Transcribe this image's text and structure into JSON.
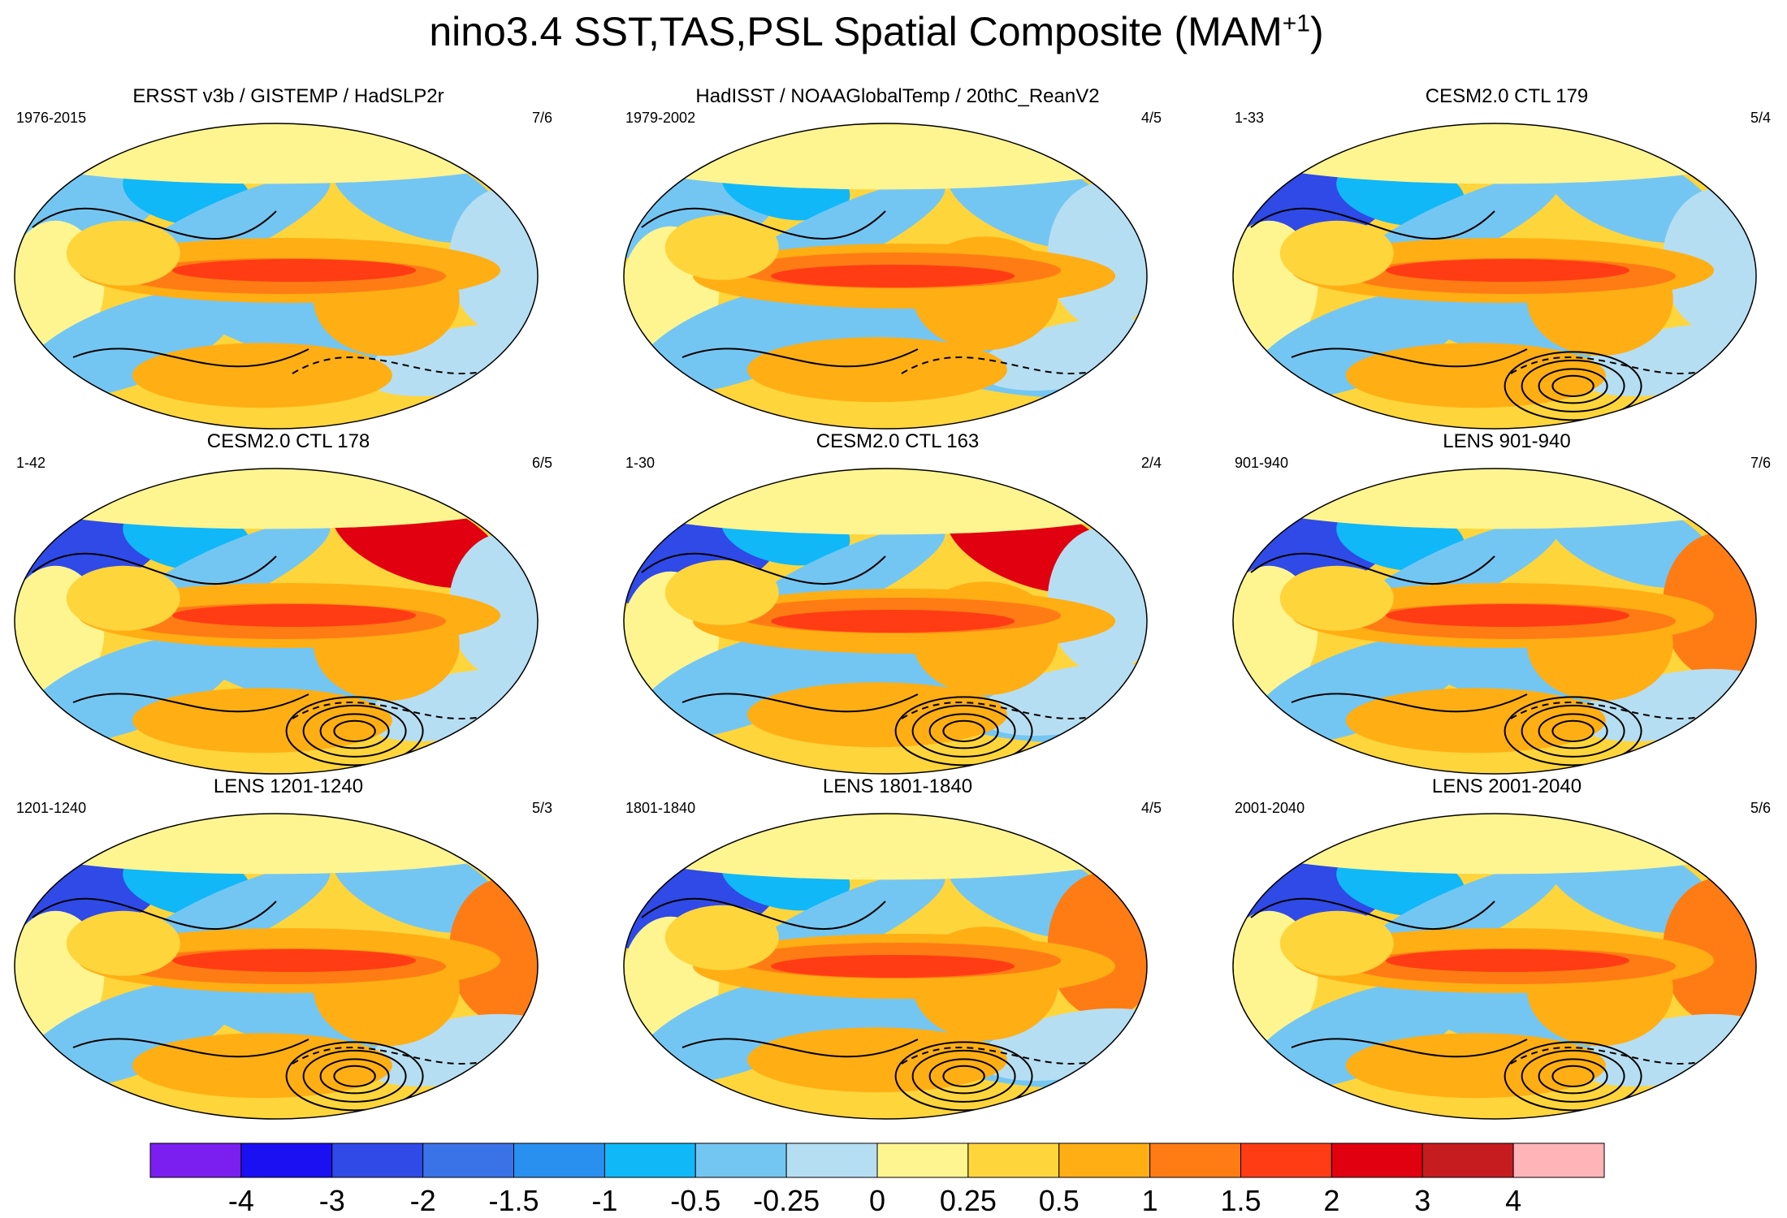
{
  "title": {
    "main": "nino3.4 SST,TAS,PSL Spatial Composite (MAM",
    "superscript": "+1",
    "close": ")"
  },
  "panels": [
    {
      "title": "ERSST v3b / GISTEMP / HadSLP2r",
      "period": "1976-2015",
      "ratio": "7/6",
      "variant": 0
    },
    {
      "title": "HadISST / NOAAGlobalTemp / 20thC_ReanV2",
      "period": "1979-2002",
      "ratio": "4/5",
      "variant": 1
    },
    {
      "title": "CESM2.0 CTL 179",
      "period": "1-33",
      "ratio": "5/4",
      "variant": 2
    },
    {
      "title": "CESM2.0 CTL 178",
      "period": "1-42",
      "ratio": "6/5",
      "variant": 3
    },
    {
      "title": "CESM2.0 CTL 163",
      "period": "1-30",
      "ratio": "2/4",
      "variant": 4
    },
    {
      "title": "LENS 901-940",
      "period": "901-940",
      "ratio": "7/6",
      "variant": 5
    },
    {
      "title": "LENS 1201-1240",
      "period": "1201-1240",
      "ratio": "5/3",
      "variant": 6
    },
    {
      "title": "LENS 1801-1840",
      "period": "1801-1840",
      "ratio": "4/5",
      "variant": 7
    },
    {
      "title": "LENS 2001-2040",
      "period": "2001-2040",
      "ratio": "5/6",
      "variant": 8
    }
  ],
  "colorbar": {
    "colors": [
      "#7a1ff0",
      "#1a10f2",
      "#2f4ae6",
      "#3a72e8",
      "#2a90f0",
      "#10b8f8",
      "#74c6f2",
      "#b6def2",
      "#fff590",
      "#ffd53c",
      "#ffae14",
      "#ff7c14",
      "#ff3c14",
      "#e00010",
      "#c61c20",
      "#ffb4b8"
    ],
    "labels": [
      "-4",
      "-3",
      "-2",
      "-1.5",
      "-1",
      "-0.5",
      "-0.25",
      "0",
      "0.25",
      "0.5",
      "1",
      "1.5",
      "2",
      "3",
      "4"
    ]
  }
}
